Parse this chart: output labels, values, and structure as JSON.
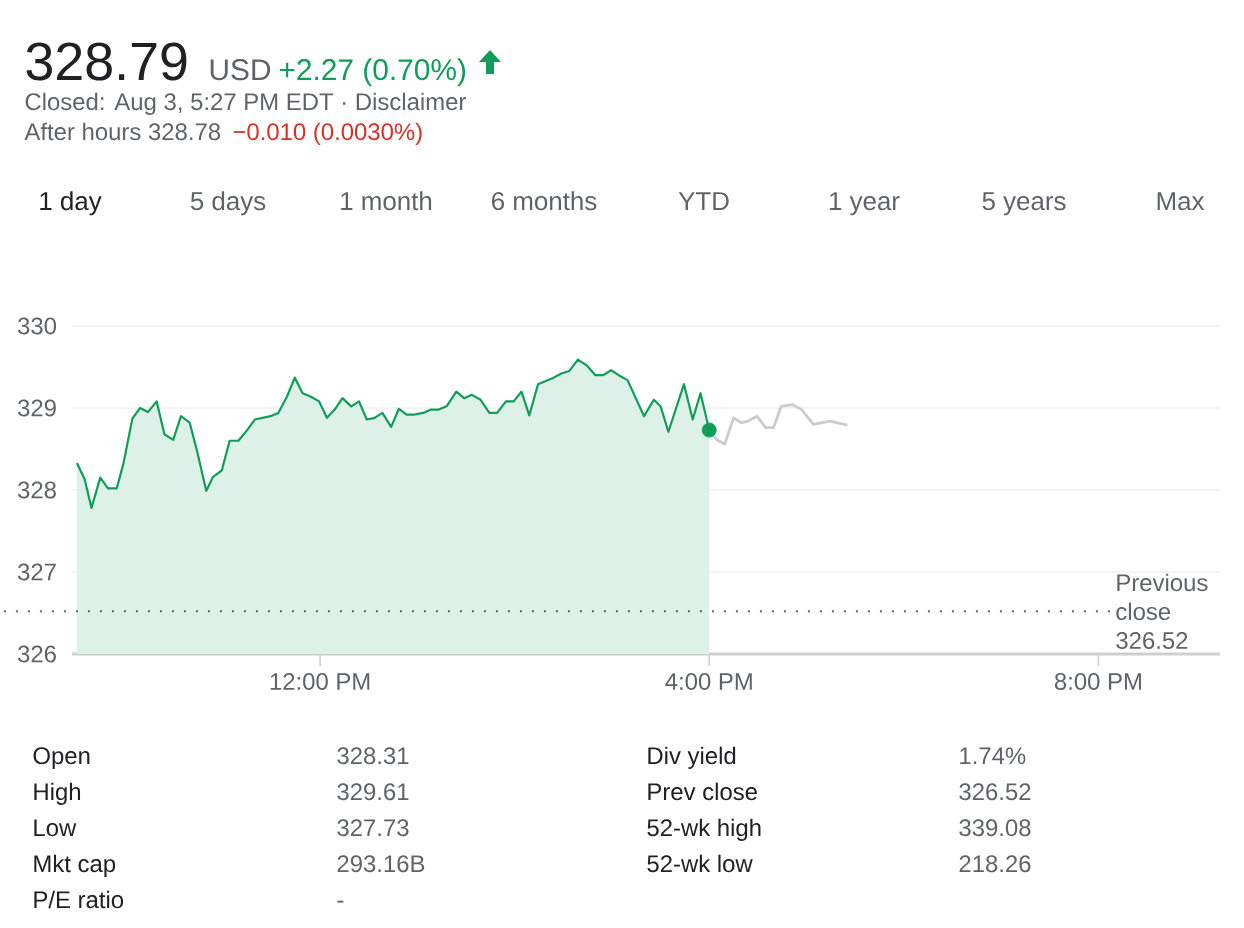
{
  "chart_data": {
    "type": "line",
    "title": "328.79",
    "xlim": [
      9.45,
      21.25
    ],
    "ylim": [
      326,
      330
    ],
    "xticks": [
      {
        "value": 12,
        "label": "12:00 PM"
      },
      {
        "value": 16,
        "label": "4:00 PM"
      },
      {
        "value": 20,
        "label": "8:00 PM"
      }
    ],
    "yticks": [
      326,
      327,
      328,
      329,
      330
    ],
    "grid": "y",
    "series": [
      {
        "type": "area",
        "color": "#0f9d58",
        "x": [
          9.5,
          9.58,
          9.65,
          9.74,
          9.82,
          9.91,
          9.98,
          10.07,
          10.15,
          10.23,
          10.32,
          10.4,
          10.49,
          10.57,
          10.66,
          10.74,
          10.83,
          10.9,
          10.99,
          11.07,
          11.16,
          11.25,
          11.33,
          11.41,
          11.49,
          11.57,
          11.66,
          11.74,
          11.82,
          11.9,
          11.99,
          12.07,
          12.15,
          12.23,
          12.32,
          12.4,
          12.48,
          12.56,
          12.64,
          12.73,
          12.81,
          12.89,
          12.97,
          13.06,
          13.14,
          13.22,
          13.3,
          13.4,
          13.48,
          13.56,
          13.65,
          13.74,
          13.82,
          13.91,
          13.99,
          14.07,
          14.15,
          14.24,
          14.32,
          14.4,
          14.48,
          14.56,
          14.65,
          14.74,
          14.83,
          14.91,
          14.99,
          15.07,
          15.16,
          15.33,
          15.43,
          15.5,
          15.58,
          15.74,
          15.83,
          15.91,
          16.0
        ],
        "values": [
          328.33,
          328.13,
          327.78,
          328.15,
          328.02,
          328.02,
          328.33,
          328.87,
          329.0,
          328.95,
          329.08,
          328.68,
          328.61,
          328.9,
          328.82,
          328.45,
          327.99,
          328.16,
          328.24,
          328.6,
          328.6,
          328.73,
          328.86,
          328.88,
          328.9,
          328.94,
          329.14,
          329.37,
          329.18,
          329.14,
          329.08,
          328.88,
          328.98,
          329.12,
          329.02,
          329.08,
          328.86,
          328.88,
          328.94,
          328.77,
          328.99,
          328.92,
          328.92,
          328.94,
          328.98,
          328.98,
          329.02,
          329.2,
          329.12,
          329.16,
          329.1,
          328.94,
          328.94,
          329.08,
          329.08,
          329.2,
          328.91,
          329.29,
          329.33,
          329.37,
          329.42,
          329.45,
          329.59,
          329.52,
          329.4,
          329.4,
          329.46,
          329.4,
          329.34,
          328.9,
          329.1,
          329.02,
          328.71,
          329.29,
          328.86,
          329.18,
          328.73
        ]
      },
      {
        "color": "#cccccc",
        "x": [
          16.0,
          16.08,
          16.16,
          16.25,
          16.33,
          16.4,
          16.49,
          16.58,
          16.66,
          16.74,
          16.86,
          16.95,
          17.07,
          17.24,
          17.42
        ],
        "values": [
          328.73,
          328.61,
          328.56,
          328.88,
          328.82,
          328.84,
          328.9,
          328.76,
          328.76,
          329.02,
          329.04,
          328.98,
          328.8,
          328.84,
          328.79
        ]
      },
      {
        "type": "scatter",
        "color": "#0f9d58",
        "marker": "circle",
        "x": [
          16.0
        ],
        "values": [
          328.73
        ]
      }
    ],
    "ref_lines": [
      {
        "axis": "y",
        "value": 326.52,
        "label": "Previous close 326.52",
        "line_style": "dotted",
        "color": "#5f6368"
      }
    ],
    "annotations": [
      "USD",
      "+2.27 (0.70%)",
      "Closed: Aug 3, 5:27 PM EDT · Disclaimer",
      "After hours 328.78",
      "−0.010 (0.0030%)",
      "1 day",
      "5 days",
      "1 month",
      "6 months",
      "YTD",
      "1 year",
      "5 years",
      "Max",
      "Open",
      "328.31",
      "Div yield",
      "1.74%",
      "High",
      "329.61",
      "Prev close",
      "326.52",
      "Low",
      "327.73",
      "52-wk high",
      "339.08",
      "Mkt cap",
      "293.16B",
      "52-wk low",
      "218.26",
      "P/E ratio",
      "-"
    ]
  }
}
